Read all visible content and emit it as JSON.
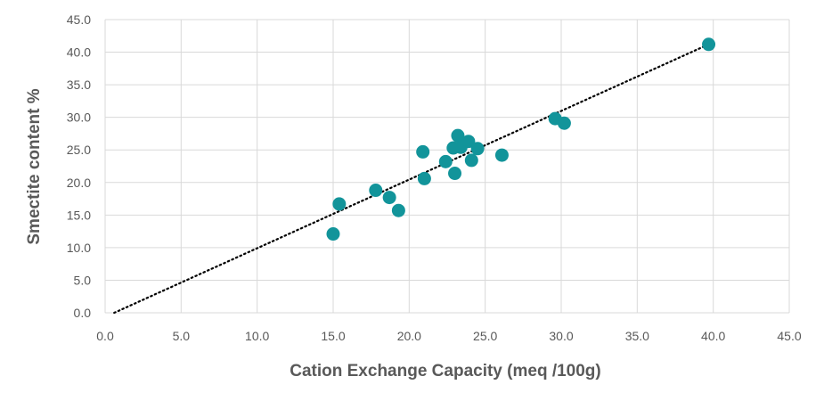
{
  "chart_data": {
    "type": "scatter",
    "title": "",
    "xlabel": "Cation Exchange Capacity (meq /100g)",
    "ylabel": "Smectite content %",
    "xlim": [
      0,
      45
    ],
    "ylim": [
      0,
      45
    ],
    "x_ticks": [
      "0.0",
      "5.0",
      "10.0",
      "15.0",
      "20.0",
      "25.0",
      "30.0",
      "35.0",
      "40.0",
      "45.0"
    ],
    "y_ticks": [
      "0.0",
      "5.0",
      "10.0",
      "15.0",
      "20.0",
      "25.0",
      "30.0",
      "35.0",
      "40.0",
      "45.0"
    ],
    "grid": true,
    "legend": "none",
    "marker_color": "#12949A",
    "trendline": {
      "style": "dotted",
      "color": "#000000",
      "from": [
        0.6,
        0
      ],
      "to": [
        39.6,
        41.1
      ]
    },
    "points": [
      [
        15.0,
        12.1
      ],
      [
        15.4,
        16.7
      ],
      [
        17.8,
        18.8
      ],
      [
        18.7,
        17.7
      ],
      [
        19.3,
        15.7
      ],
      [
        20.9,
        24.7
      ],
      [
        21.0,
        20.6
      ],
      [
        22.4,
        23.2
      ],
      [
        22.9,
        25.3
      ],
      [
        23.0,
        21.4
      ],
      [
        23.2,
        27.2
      ],
      [
        23.4,
        25.4
      ],
      [
        23.9,
        26.3
      ],
      [
        24.1,
        23.4
      ],
      [
        24.5,
        25.2
      ],
      [
        26.1,
        24.2
      ],
      [
        29.6,
        29.8
      ],
      [
        30.2,
        29.1
      ],
      [
        39.7,
        41.2
      ]
    ]
  }
}
